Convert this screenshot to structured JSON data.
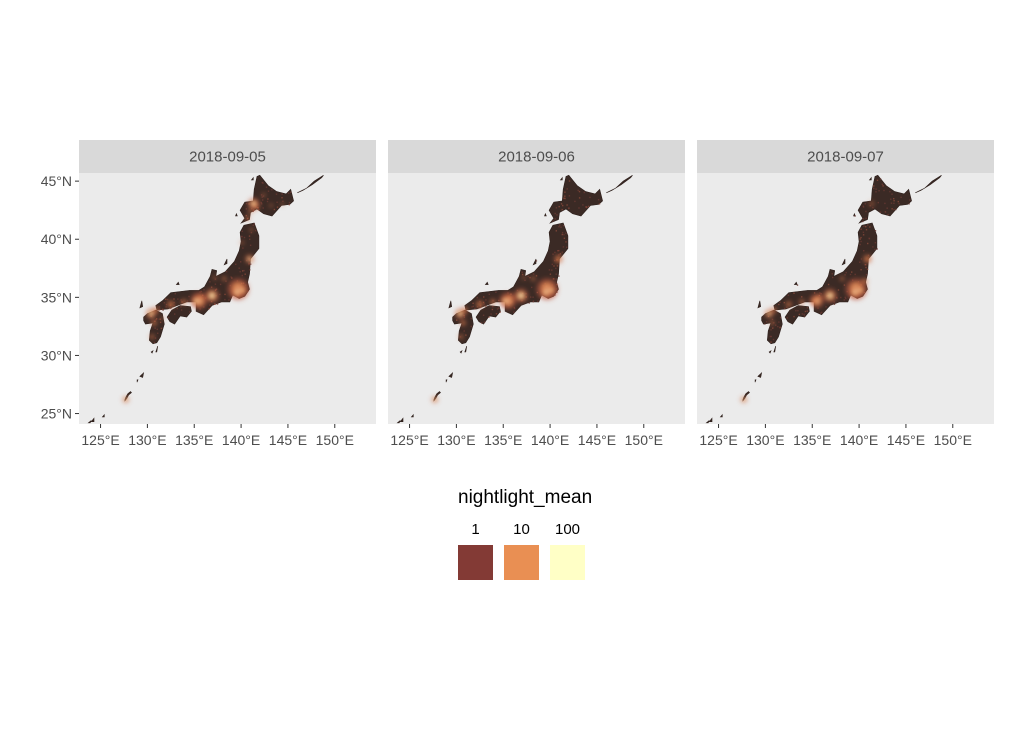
{
  "chart_data": {
    "type": "map",
    "facets": [
      "2018-09-05",
      "2018-09-06",
      "2018-09-07"
    ],
    "x_ticks": [
      "125°E",
      "130°E",
      "135°E",
      "140°E",
      "145°E",
      "150°E"
    ],
    "x_tick_values": [
      125,
      130,
      135,
      140,
      145,
      150
    ],
    "y_ticks": [
      "25°N",
      "30°N",
      "35°N",
      "40°N",
      "45°N"
    ],
    "y_tick_values": [
      25,
      30,
      35,
      40,
      45
    ],
    "xlim": [
      122.7,
      154.4
    ],
    "ylim": [
      24.1,
      45.7
    ],
    "legend": {
      "title": "nightlight_mean",
      "placement": "bottom",
      "labels": [
        "1",
        "10",
        "100"
      ],
      "colors": [
        "#833a35",
        "#e98f53",
        "#ffffc6"
      ]
    },
    "colors": {
      "panel_background": "#ebebeb",
      "strip_background": "#d9d9d9",
      "land_dark": "#3b2a25"
    }
  }
}
